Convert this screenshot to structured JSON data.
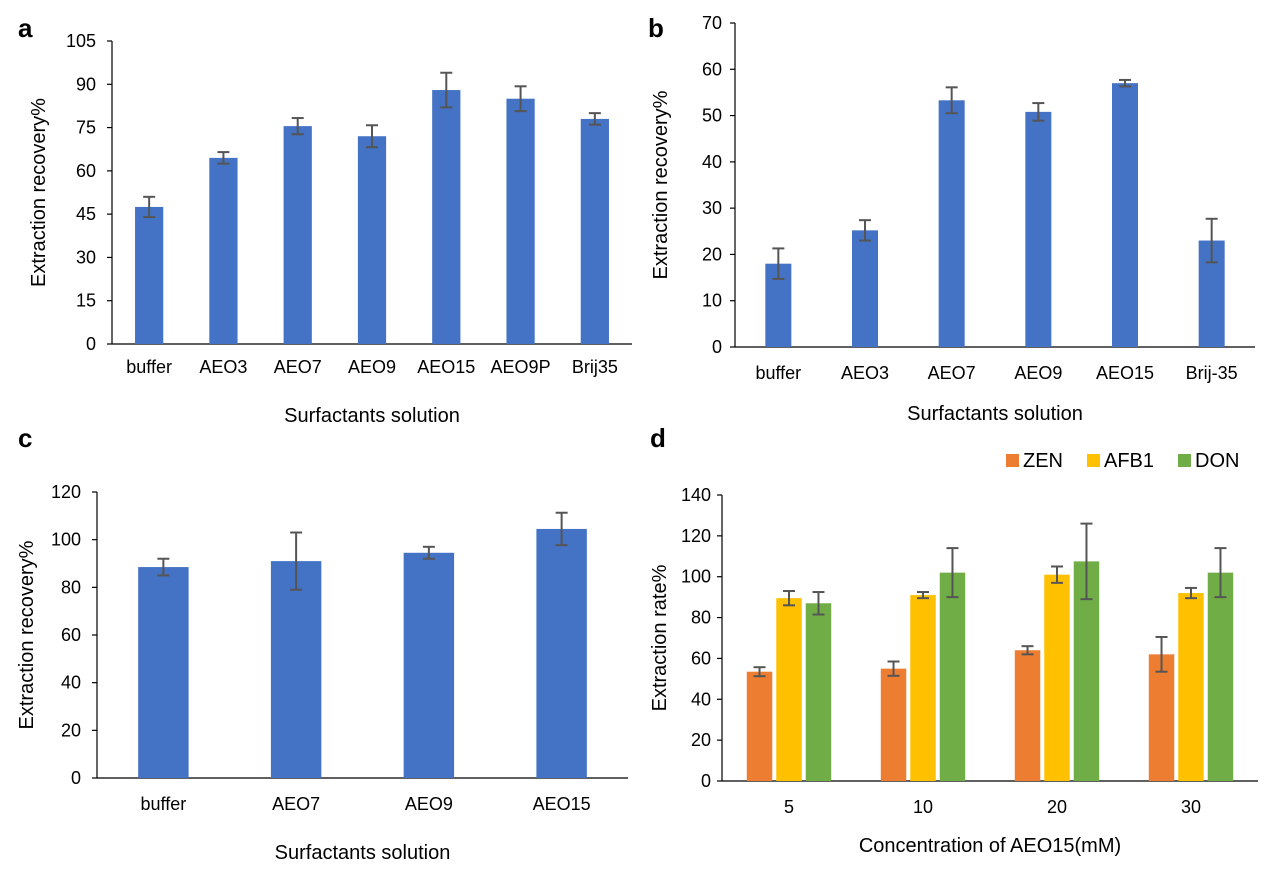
{
  "colors": {
    "bar": "#4472C4",
    "ZEN": "#ED7D31",
    "AFB1": "#FFC000",
    "DON": "#70AD47",
    "error": "#555555"
  },
  "chart_data": [
    {
      "panel": "a",
      "type": "bar",
      "xlabel": "Surfactants solution",
      "ylabel": "Extraction recovery%",
      "ylim": [
        0,
        105
      ],
      "yticks": [
        0,
        15,
        30,
        45,
        60,
        75,
        90,
        105
      ],
      "categories": [
        "buffer",
        "AEO3",
        "AEO7",
        "AEO9",
        "AEO15",
        "AEO9P",
        "Brij35"
      ],
      "series": [
        {
          "name": "",
          "color": "#4472C4",
          "values": [
            47.5,
            64.5,
            75.5,
            72.0,
            88.0,
            85.0,
            78.0
          ],
          "errors": [
            3.5,
            2.0,
            2.8,
            3.8,
            6.0,
            4.3,
            2.0
          ]
        }
      ]
    },
    {
      "panel": "b",
      "type": "bar",
      "xlabel": "Surfactants solution",
      "ylabel": "Extraction recovery%",
      "ylim": [
        0,
        70
      ],
      "yticks": [
        0,
        10,
        20,
        30,
        40,
        50,
        60,
        70
      ],
      "categories": [
        "buffer",
        "AEO3",
        "AEO7",
        "AEO9",
        "AEO15",
        "Brij-35"
      ],
      "series": [
        {
          "name": "",
          "color": "#4472C4",
          "values": [
            18.0,
            25.2,
            53.3,
            50.8,
            57.0,
            23.0
          ],
          "errors": [
            3.3,
            2.2,
            2.8,
            1.9,
            0.7,
            4.7
          ]
        }
      ]
    },
    {
      "panel": "c",
      "type": "bar",
      "xlabel": "Surfactants solution",
      "ylabel": "Extraction recovery%",
      "ylim": [
        0,
        120
      ],
      "yticks": [
        0,
        20,
        40,
        60,
        80,
        100,
        120
      ],
      "categories": [
        "buffer",
        "AEO7",
        "AEO9",
        "AEO15"
      ],
      "series": [
        {
          "name": "",
          "color": "#4472C4",
          "values": [
            88.5,
            91.0,
            94.5,
            104.5
          ],
          "errors": [
            3.5,
            12.0,
            2.5,
            6.8
          ]
        }
      ]
    },
    {
      "panel": "d",
      "type": "bar",
      "xlabel": "Concentration of AEO15(mM)",
      "ylabel": "Extraction rate%",
      "ylim": [
        0,
        140
      ],
      "yticks": [
        0,
        20,
        40,
        60,
        80,
        100,
        120,
        140
      ],
      "categories": [
        "5",
        "10",
        "20",
        "30"
      ],
      "legend": {
        "position": "top-right"
      },
      "series": [
        {
          "name": "ZEN",
          "color": "#ED7D31",
          "values": [
            53.5,
            55.0,
            64.0,
            62.0
          ],
          "errors": [
            2.2,
            3.5,
            2.0,
            8.5
          ]
        },
        {
          "name": "AFB1",
          "color": "#FFC000",
          "values": [
            89.5,
            91.0,
            101.0,
            92.0
          ],
          "errors": [
            3.5,
            1.5,
            4.0,
            2.5
          ]
        },
        {
          "name": "DON",
          "color": "#70AD47",
          "values": [
            87.0,
            102.0,
            107.5,
            102.0
          ],
          "errors": [
            5.5,
            12.0,
            18.5,
            12.0
          ]
        }
      ]
    }
  ]
}
